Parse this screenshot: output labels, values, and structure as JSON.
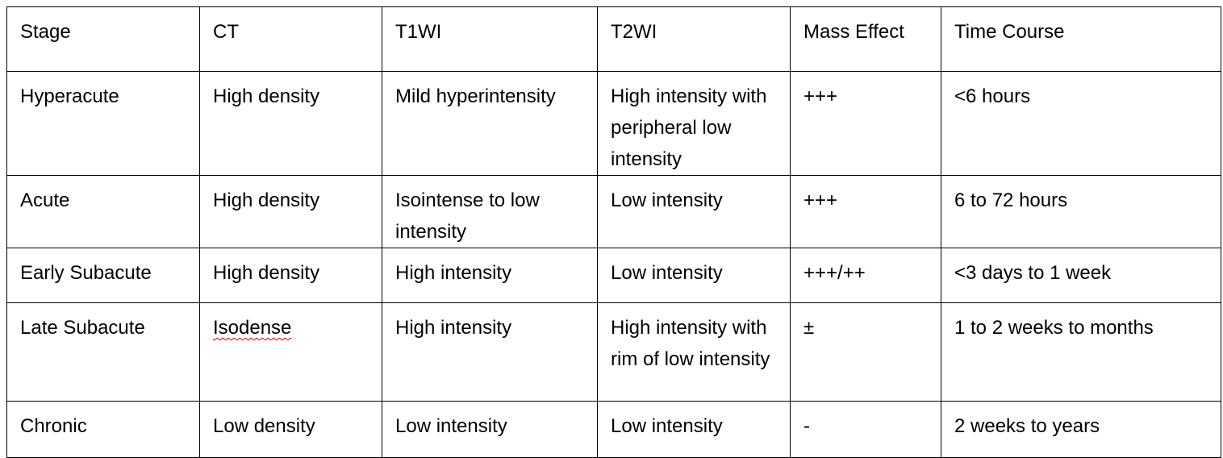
{
  "table": {
    "header": [
      "Stage",
      "CT",
      "T1WI",
      "T2WI",
      "Mass Effect",
      "Time Course"
    ],
    "rows": [
      [
        "Hyperacute",
        "High density",
        "Mild hyperintensity",
        "High intensity with peripheral low intensity",
        "+++",
        "<6 hours"
      ],
      [
        "Acute",
        "High density",
        "Isointense to low intensity",
        "Low intensity",
        "+++",
        "6 to 72 hours"
      ],
      [
        "Early Subacute",
        "High density",
        "High intensity",
        "Low intensity",
        "+++/++",
        "<3 days to 1 week"
      ],
      [
        "Late Subacute",
        "Isodense",
        "High intensity",
        "High intensity with rim of low intensity",
        "±",
        "1 to 2 weeks to months"
      ],
      [
        "Chronic",
        "Low density",
        "Low intensity",
        "Low intensity",
        "-",
        "2 weeks to years"
      ]
    ]
  }
}
